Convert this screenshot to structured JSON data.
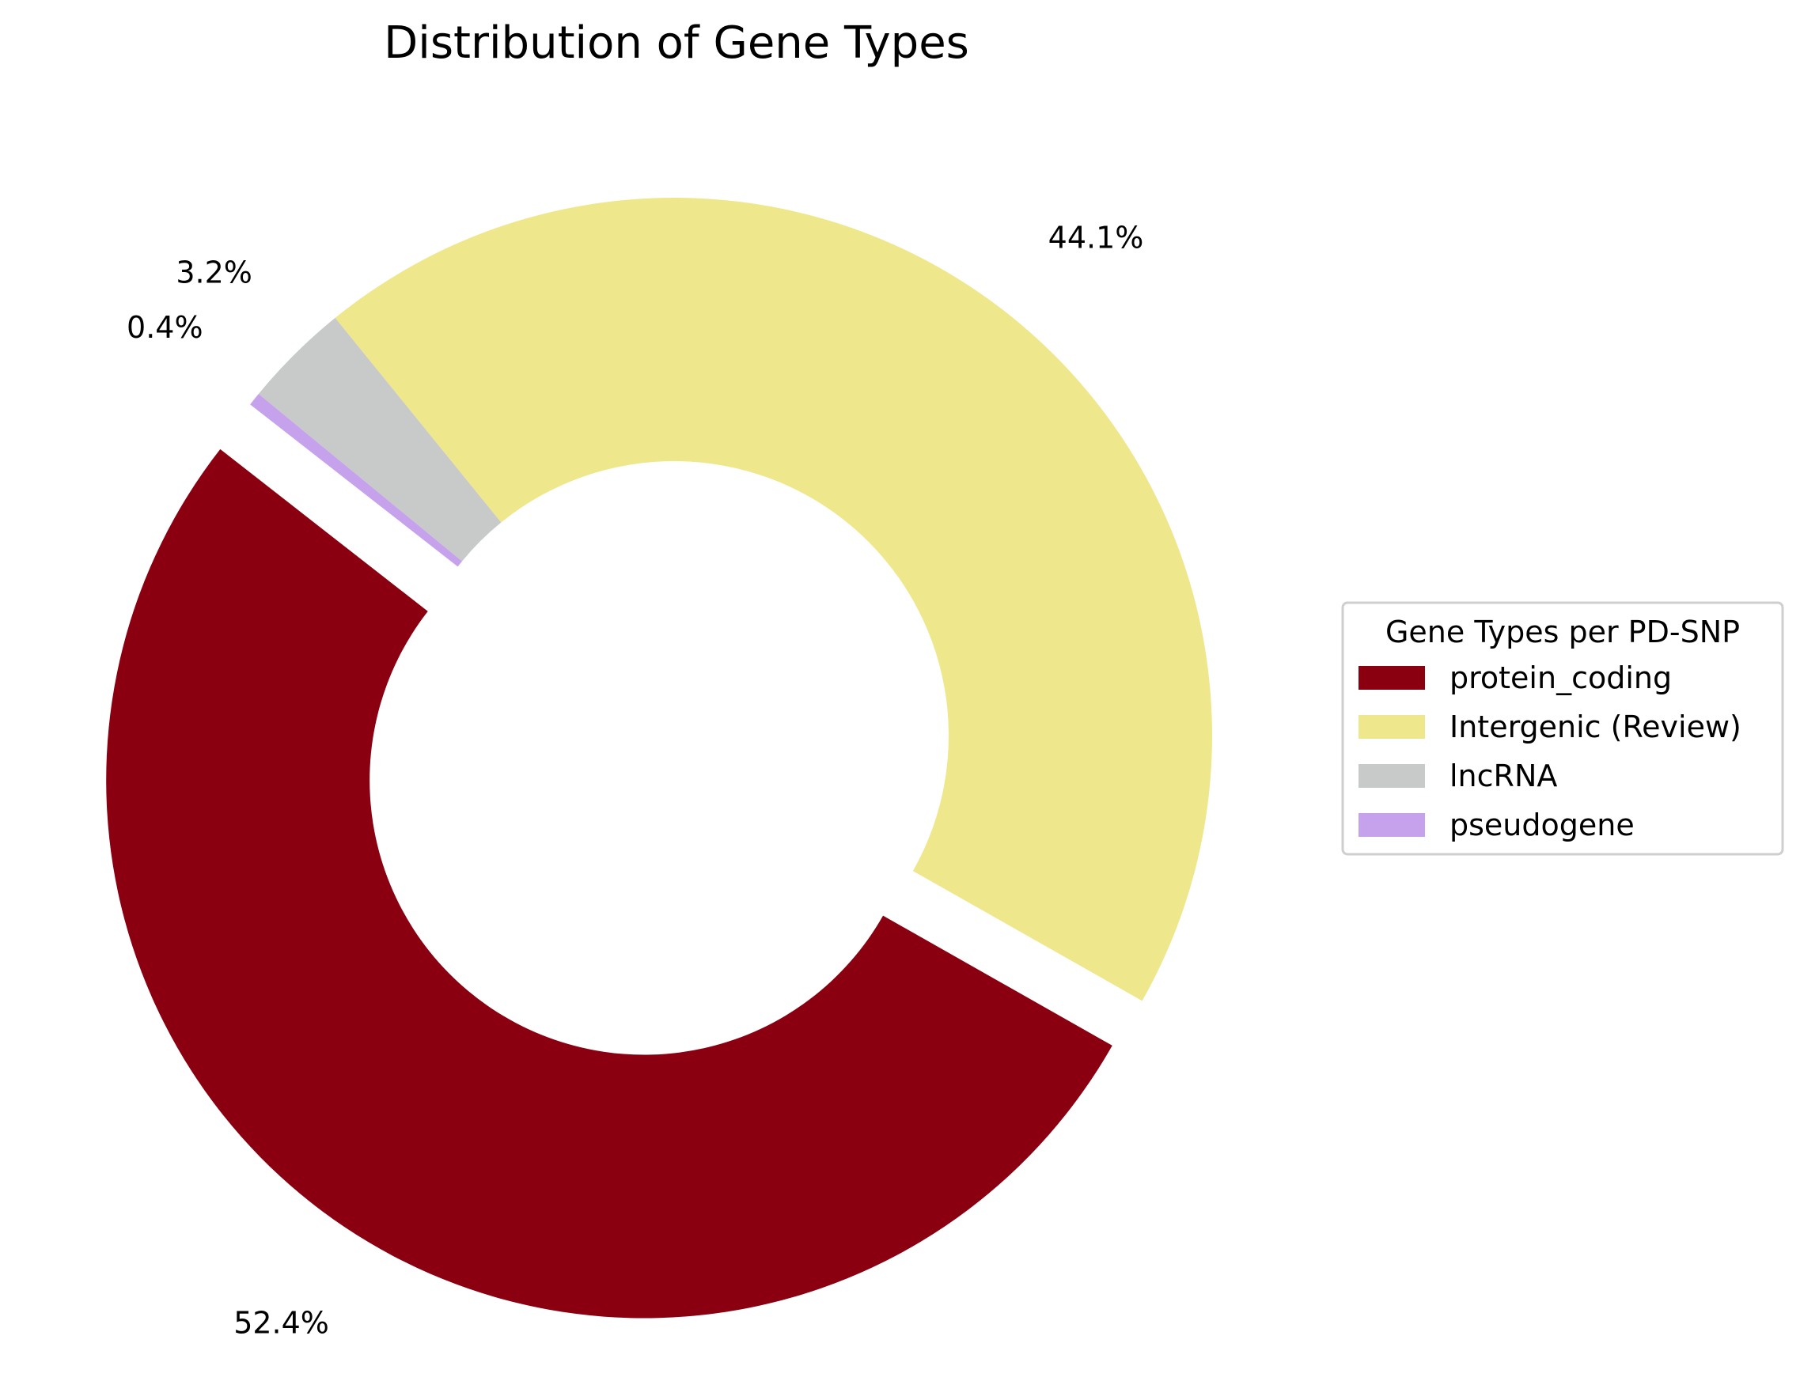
{
  "chart_data": {
    "type": "pie",
    "title": "Distribution of Gene Types",
    "donut": true,
    "categories": [
      "protein_coding",
      "Intergenic (Review)",
      "lncRNA",
      "pseudogene"
    ],
    "values": [
      52.4,
      44.1,
      3.2,
      0.4
    ],
    "value_labels": [
      "52.4%",
      "44.1%",
      "3.2%",
      "0.4%"
    ],
    "exploded": [
      true,
      false,
      false,
      false
    ],
    "colors": [
      "#8b0011",
      "#efe78c",
      "#c7cac8",
      "#c6a2ec"
    ],
    "legend": {
      "title": "Gene Types per PD-SNP",
      "placement": "right",
      "entries": [
        "protein_coding",
        "Intergenic (Review)",
        "lncRNA",
        "pseudogene"
      ]
    }
  }
}
